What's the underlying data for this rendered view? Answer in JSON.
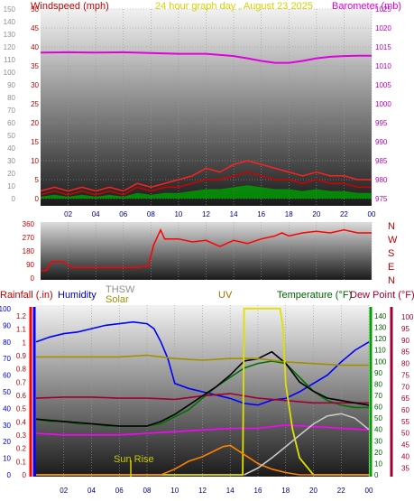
{
  "header": {
    "left_label": "Windspeed (mph)",
    "center_label": "24 hour graph day , August 23 2025",
    "right_label": "Barometer (mb)"
  },
  "colors": {
    "windspeed": "#d10000",
    "windgust": "#ff2020",
    "barometer": "#e000e0",
    "wind_avg_green": "#00a000",
    "wind_avg_blue": "#0000c0",
    "direction": "#ff0000",
    "humidity": "#0000ff",
    "temperature": "#007000",
    "dewpoint": "#a00030",
    "thsw": "#404040",
    "uv_solar": "#e0e000",
    "rain": "#ff0000",
    "solar_orange": "#ff8000",
    "sun_curve": "#c8c8c8",
    "magenta_line": "#ff00ff",
    "olive_line": "#a09000"
  },
  "chart_data": [
    {
      "type": "line",
      "title": "",
      "ylabel_left": "Windspeed (mph)",
      "ylabel_left_ticks": [
        "0",
        "5",
        "10",
        "15",
        "20",
        "25",
        "30",
        "35",
        "40",
        "45",
        "50"
      ],
      "ylabel_left_ticks_outer": [
        "0",
        "10",
        "20",
        "30",
        "40",
        "50",
        "60",
        "70",
        "80",
        "90",
        "100",
        "110",
        "120",
        "130",
        "140",
        "150"
      ],
      "ylabel_right": "Barometer (mb)",
      "ylabel_right_ticks": [
        "975",
        "980",
        "985",
        "990",
        "995",
        "1000",
        "1005",
        "1010",
        "1015",
        "1020",
        "1025"
      ],
      "x_ticks": [
        "02",
        "04",
        "06",
        "08",
        "10",
        "12",
        "14",
        "16",
        "18",
        "20",
        "22",
        "00"
      ],
      "xlim_hours": [
        0,
        24
      ],
      "ylim_left": [
        0,
        50
      ],
      "ylim_right": [
        975,
        1025
      ],
      "series": [
        {
          "key": "barometer",
          "x": [
            0,
            2,
            4,
            6,
            8,
            10,
            12,
            14,
            15,
            16,
            17,
            18,
            19,
            20,
            21,
            22,
            23,
            24
          ],
          "y": [
            1013.5,
            1013.6,
            1013.5,
            1013.6,
            1013.4,
            1013.2,
            1013.2,
            1012.6,
            1012.0,
            1011.3,
            1010.8,
            1010.8,
            1011.3,
            1012.0,
            1012.4,
            1012.6,
            1012.7,
            1012.7
          ]
        },
        {
          "key": "windspeed",
          "x": [
            0,
            1,
            2,
            3,
            4,
            5,
            6,
            7,
            8,
            9,
            10,
            11,
            12,
            13,
            14,
            15,
            16,
            17,
            18,
            19,
            20,
            21,
            22,
            23,
            24
          ],
          "y": [
            1,
            2,
            1,
            2,
            1,
            2,
            1,
            3,
            2,
            3,
            3,
            4,
            5,
            5,
            6,
            7,
            6,
            5,
            5,
            4,
            5,
            4,
            4,
            3,
            3
          ]
        },
        {
          "key": "windgust",
          "x": [
            0,
            1,
            2,
            3,
            4,
            5,
            6,
            7,
            8,
            9,
            10,
            11,
            12,
            13,
            14,
            15,
            16,
            17,
            18,
            19,
            20,
            21,
            22,
            23,
            24
          ],
          "y": [
            2,
            3,
            2,
            3,
            2,
            3,
            2,
            4,
            3,
            4,
            5,
            6,
            8,
            7,
            9,
            10,
            9,
            8,
            7,
            6,
            7,
            6,
            6,
            5,
            5
          ]
        }
      ]
    },
    {
      "type": "line",
      "title": "",
      "ylabel_right_letters": [
        "N",
        "W",
        "S",
        "E",
        "N"
      ],
      "y_ticks": [
        "0",
        "90",
        "180",
        "270",
        "360"
      ],
      "ylim": [
        0,
        360
      ],
      "x_ticks": [
        "02",
        "04",
        "06",
        "08",
        "10",
        "12",
        "14",
        "16",
        "18",
        "20",
        "22",
        "00"
      ],
      "series": [
        {
          "key": "direction",
          "x": [
            0,
            0.4,
            0.8,
            1.6,
            2.3,
            3,
            4,
            5,
            6,
            7,
            7.8,
            8.2,
            8.7,
            9,
            10,
            11,
            12,
            13,
            14,
            15,
            16,
            17,
            17.5,
            18,
            19,
            20,
            21,
            22,
            23,
            24
          ],
          "y": [
            50,
            50,
            110,
            110,
            70,
            70,
            70,
            70,
            70,
            70,
            80,
            220,
            320,
            260,
            260,
            240,
            250,
            210,
            250,
            230,
            260,
            280,
            300,
            280,
            300,
            310,
            300,
            320,
            300,
            300
          ]
        }
      ]
    },
    {
      "type": "line",
      "title": "",
      "labels_top": [
        "Rainfall (.in)",
        "Humidity",
        "THSW",
        "Solar",
        "UV",
        "Temperature (°F)",
        "Dew Point (°F)"
      ],
      "annotation": "Sun Rise",
      "rain_ticks": [
        "0",
        "0.1",
        "0.2",
        "0.3",
        "0.4",
        "0.5",
        "0.6",
        "0.7",
        "0.8",
        "0.9",
        "1",
        "1.1",
        "1.2"
      ],
      "humidity_ticks": [
        "0",
        "10",
        "20",
        "30",
        "40",
        "50",
        "60",
        "70",
        "80",
        "90",
        "100"
      ],
      "uv_ticks": [
        "0",
        "10",
        "20",
        "30",
        "40",
        "50",
        "60",
        "70",
        "80",
        "90",
        "100",
        "110",
        "120",
        "130",
        "140"
      ],
      "temp_ticks": [
        "35",
        "40",
        "45",
        "50",
        "55",
        "60",
        "65",
        "70",
        "75",
        "80",
        "85",
        "90",
        "95",
        "100"
      ],
      "x_ticks": [
        "02",
        "04",
        "06",
        "08",
        "10",
        "12",
        "14",
        "16",
        "18",
        "20",
        "22",
        "00"
      ],
      "series": [
        {
          "key": "humidity",
          "x": [
            0,
            1,
            2,
            3,
            4,
            5,
            6,
            7,
            8,
            8.5,
            9,
            9.5,
            10,
            11,
            12,
            13,
            14,
            15,
            16,
            17,
            18,
            19,
            20,
            21,
            22,
            23,
            24
          ],
          "y": [
            80,
            83,
            85,
            86,
            88,
            90,
            91,
            92,
            91,
            88,
            80,
            70,
            55,
            52,
            50,
            48,
            46,
            43,
            42,
            45,
            46,
            50,
            55,
            60,
            68,
            75,
            80
          ]
        },
        {
          "key": "temperature",
          "x": [
            0,
            1,
            2,
            3,
            4,
            5,
            6,
            7,
            8,
            9,
            10,
            11,
            12,
            13,
            14,
            15,
            16,
            17,
            18,
            19,
            20,
            21,
            22,
            23,
            24
          ],
          "y": [
            56,
            55,
            55,
            54,
            54,
            53,
            53,
            53,
            53,
            54,
            57,
            60,
            65,
            70,
            74,
            78,
            80,
            81,
            80,
            74,
            68,
            64,
            62,
            61,
            61
          ]
        },
        {
          "key": "dewpoint",
          "x": [
            0,
            2,
            4,
            6,
            8,
            10,
            12,
            14,
            16,
            18,
            20,
            22,
            24
          ],
          "y": [
            65,
            65.5,
            65.5,
            65,
            65,
            64.5,
            66,
            67,
            65,
            64,
            63,
            63,
            63
          ]
        },
        {
          "key": "thsw",
          "x": [
            0,
            2,
            4,
            6,
            8,
            9,
            10,
            11,
            12,
            13,
            14,
            15,
            16,
            17,
            18,
            19,
            20,
            21,
            22,
            23,
            24
          ],
          "y": [
            56,
            55,
            54,
            53,
            53,
            55,
            58,
            62,
            66,
            70,
            75,
            81,
            82,
            85,
            80,
            72,
            68,
            65,
            64,
            63,
            62
          ]
        },
        {
          "key": "magenta_line",
          "x": [
            0,
            2,
            4,
            6,
            8,
            10,
            12,
            14,
            16,
            18,
            20,
            22,
            24
          ],
          "y": [
            25,
            24,
            24,
            24,
            25,
            26,
            27,
            28,
            28,
            30,
            29,
            28,
            27
          ]
        },
        {
          "key": "olive_line",
          "x": [
            0,
            2,
            4,
            6,
            8,
            10,
            12,
            14,
            16,
            18,
            20,
            22,
            24
          ],
          "y": [
            71,
            71,
            71,
            71,
            72,
            70,
            69,
            70,
            70,
            68,
            67,
            66,
            66
          ]
        },
        {
          "key": "uv",
          "x": [
            0,
            14.9,
            15,
            17.6,
            17.8,
            18,
            18.5,
            19,
            20,
            24
          ],
          "y": [
            0,
            0,
            147,
            147,
            130,
            80,
            40,
            15,
            0,
            0
          ]
        },
        {
          "key": "solar",
          "x": [
            0,
            9,
            10,
            11,
            12,
            13,
            13.5,
            14,
            14.5,
            15,
            16,
            17,
            18,
            19,
            20,
            24
          ],
          "y": [
            0,
            0,
            5,
            12,
            16,
            22,
            25,
            26,
            22,
            18,
            10,
            5,
            2,
            0,
            0,
            0
          ]
        },
        {
          "key": "sun_curve",
          "x": [
            15,
            16,
            17,
            18,
            19,
            20,
            21,
            22,
            23,
            24
          ],
          "y": [
            0,
            6,
            15,
            25,
            35,
            45,
            52,
            54,
            50,
            40
          ]
        }
      ]
    }
  ]
}
